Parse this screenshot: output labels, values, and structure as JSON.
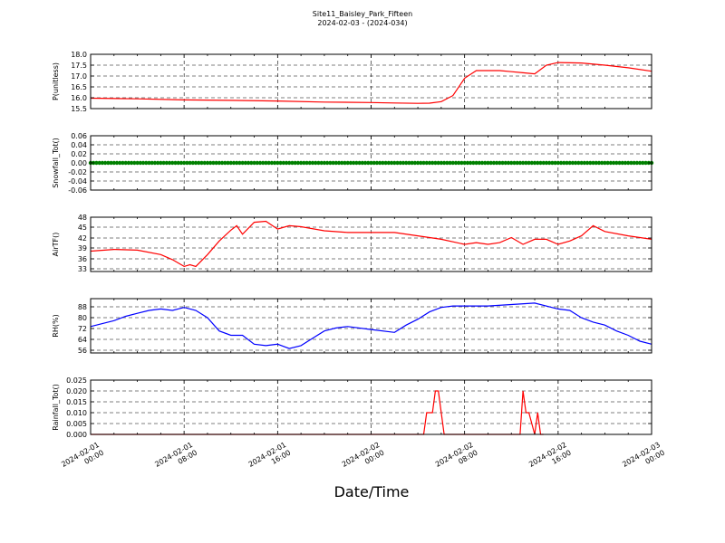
{
  "figure": {
    "title_line1": "Site11_Baisley_Park_Fifteen",
    "title_line2": "2024-02-03 - (2024-034)",
    "xlabel": "Date/Time",
    "x_tick_labels": [
      [
        "2024-02-01",
        "00:00"
      ],
      [
        "2024-02-01",
        "08:00"
      ],
      [
        "2024-02-01",
        "16:00"
      ],
      [
        "2024-02-02",
        "00:00"
      ],
      [
        "2024-02-02",
        "08:00"
      ],
      [
        "2024-02-02",
        "16:00"
      ],
      [
        "2024-02-03",
        "00:00"
      ]
    ]
  },
  "chart_data": [
    {
      "type": "line",
      "ylabel": "P(unitless)",
      "color": "#ff0000",
      "ylim": [
        15.5,
        18.0
      ],
      "yticks": [
        "18.0",
        "17.5",
        "17.0",
        "16.5",
        "16.0",
        "15.5"
      ],
      "xlim": [
        "2024-02-01 00:00",
        "2024-02-03 00:00"
      ],
      "x_hours": [
        0,
        4,
        8,
        12,
        16,
        20,
        24,
        26,
        28,
        29,
        30,
        31,
        32,
        33,
        35,
        36,
        37,
        38,
        39,
        40,
        42,
        44,
        46,
        48
      ],
      "values": [
        15.98,
        15.95,
        15.9,
        15.88,
        15.85,
        15.8,
        15.78,
        15.76,
        15.74,
        15.75,
        15.82,
        16.1,
        16.9,
        17.25,
        17.25,
        17.2,
        17.15,
        17.1,
        17.5,
        17.62,
        17.6,
        17.5,
        17.38,
        17.22
      ]
    },
    {
      "type": "scatter",
      "ylabel": "Snowfall_Tot()",
      "color": "#008000",
      "ylim": [
        -0.06,
        0.06
      ],
      "yticks": [
        "0.06",
        "0.04",
        "0.02",
        "0.00",
        "-0.02",
        "-0.04",
        "-0.06"
      ],
      "xlim": [
        "2024-02-01 00:00",
        "2024-02-03 00:00"
      ],
      "x_hours": [
        0,
        48
      ],
      "values": [
        0.0,
        0.0
      ],
      "note_marker": "dense dots at every interval"
    },
    {
      "type": "line",
      "ylabel": "AirTF()",
      "color": "#ff0000",
      "ylim": [
        32,
        48
      ],
      "yticks": [
        "48",
        "45",
        "42",
        "39",
        "36",
        "33"
      ],
      "xlim": [
        "2024-02-01 00:00",
        "2024-02-03 00:00"
      ],
      "x_hours": [
        0,
        2,
        4,
        6,
        7,
        8,
        8.5,
        9,
        10,
        11,
        12,
        12.5,
        13,
        14,
        15,
        16,
        17,
        18,
        20,
        22,
        24,
        26,
        28,
        30,
        32,
        33,
        34,
        35,
        36,
        37,
        38,
        39,
        40,
        41,
        42,
        43,
        44,
        46,
        48
      ],
      "values": [
        38,
        38.5,
        38.3,
        37,
        35.5,
        33.5,
        34,
        33.5,
        37,
        41,
        44.2,
        45.5,
        43,
        46.5,
        46.8,
        44.5,
        45.5,
        45.2,
        44,
        43.5,
        43.5,
        43.5,
        42.5,
        41.5,
        40,
        40.5,
        40,
        40.5,
        42,
        40,
        41.5,
        41.5,
        40,
        41,
        42.5,
        45.5,
        43.8,
        42.5,
        41.5
      ]
    },
    {
      "type": "line",
      "ylabel": "RH(%)",
      "color": "#0000ff",
      "ylim": [
        55,
        92
      ],
      "yticks": [
        "88",
        "80",
        "72",
        "64",
        "56"
      ],
      "xlim": [
        "2024-02-01 00:00",
        "2024-02-03 00:00"
      ],
      "x_hours": [
        0,
        1,
        2,
        3,
        4,
        5,
        6,
        7,
        8,
        9,
        10,
        11,
        12,
        13,
        14,
        15,
        16,
        17,
        18,
        19,
        20,
        21,
        22,
        24,
        26,
        27,
        28,
        29,
        30,
        31,
        32,
        34,
        36,
        38,
        40,
        41,
        42,
        43,
        44,
        45,
        46,
        47,
        48
      ],
      "values": [
        73,
        75,
        77,
        80,
        82,
        84,
        85,
        84,
        86,
        84,
        79,
        70,
        67,
        67,
        61,
        60,
        61,
        58,
        60,
        65,
        70,
        72,
        73,
        71,
        69,
        74,
        78,
        83,
        86,
        87,
        87,
        87,
        88,
        89,
        85,
        84,
        79,
        76,
        74,
        70,
        67,
        63,
        61
      ]
    },
    {
      "type": "line",
      "ylabel": "Rainfall_Tot()",
      "color": "#ff0000",
      "ylim": [
        0.0,
        0.025
      ],
      "yticks": [
        "0.025",
        "0.020",
        "0.015",
        "0.010",
        "0.005",
        "0.000"
      ],
      "xlim": [
        "2024-02-01 00:00",
        "2024-02-03 00:00"
      ],
      "x_hours": [
        0,
        28.5,
        28.75,
        29.25,
        29.5,
        29.75,
        30.0,
        30.25,
        36.75,
        37.0,
        37.25,
        37.5,
        38.0,
        38.25,
        38.5,
        38.75
      ],
      "values": [
        0,
        0,
        0.01,
        0.01,
        0.02,
        0.02,
        0.01,
        0,
        0,
        0.02,
        0.01,
        0.01,
        0,
        0.01,
        0,
        0
      ]
    }
  ]
}
